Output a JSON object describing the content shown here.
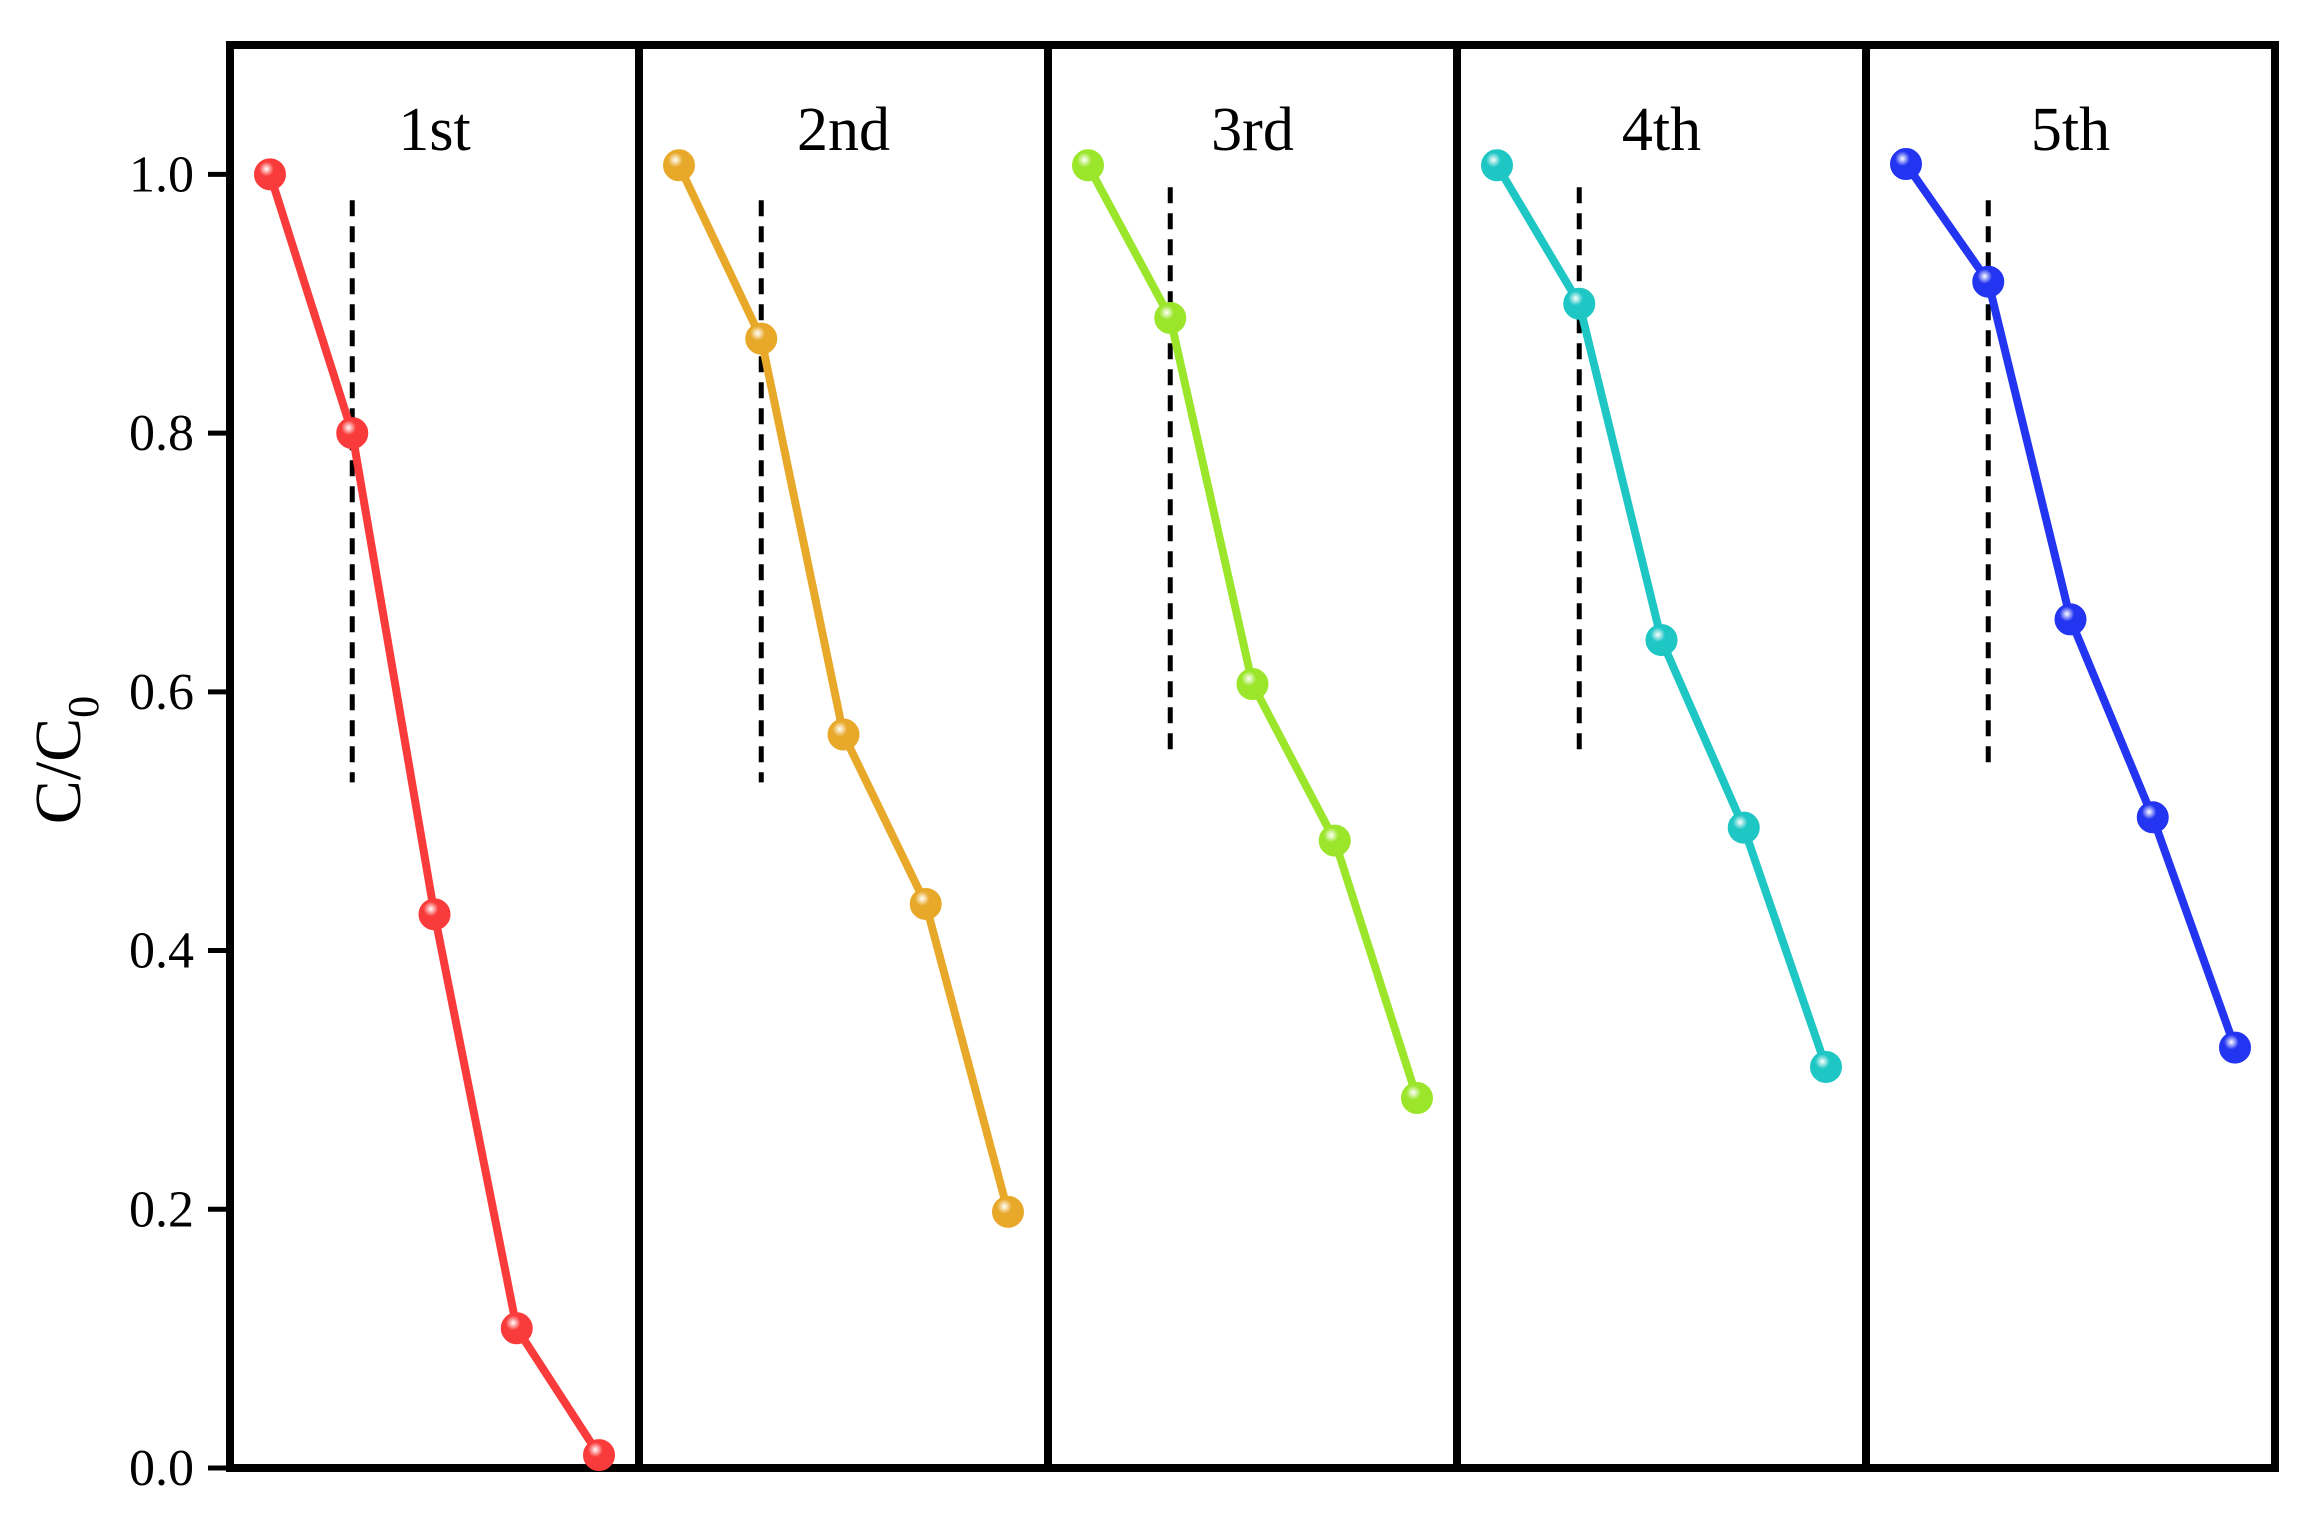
{
  "chart_data": {
    "type": "line",
    "ylabel": "C/C",
    "ylabel_subscript": "0",
    "ylim": [
      0,
      1.1
    ],
    "yticks": [
      "0.0",
      "0.2",
      "0.4",
      "0.6",
      "0.8",
      "1.0"
    ],
    "grid": false,
    "legend": "none",
    "panels": [
      {
        "title": "1st",
        "color": "#fa3b3b",
        "dashed_after_point": 1,
        "dash_range": [
          0.53,
          0.98
        ],
        "values": [
          1.0,
          0.8,
          0.428,
          0.108,
          0.01
        ]
      },
      {
        "title": "2nd",
        "color": "#e8a92a",
        "dashed_after_point": 1,
        "dash_range": [
          0.53,
          0.98
        ],
        "values": [
          1.007,
          0.873,
          0.567,
          0.436,
          0.198
        ]
      },
      {
        "title": "3rd",
        "color": "#9be62b",
        "dashed_after_point": 1,
        "dash_range": [
          0.55,
          0.99
        ],
        "values": [
          1.007,
          0.889,
          0.606,
          0.485,
          0.286
        ]
      },
      {
        "title": "4th",
        "color": "#1ec6c4",
        "dashed_after_point": 1,
        "dash_range": [
          0.55,
          0.99
        ],
        "values": [
          1.007,
          0.9,
          0.64,
          0.495,
          0.31
        ]
      },
      {
        "title": "5th",
        "color": "#2335f0",
        "dashed_after_point": 1,
        "dash_range": [
          0.54,
          0.98
        ],
        "values": [
          1.008,
          0.917,
          0.656,
          0.503,
          0.325
        ]
      }
    ]
  }
}
